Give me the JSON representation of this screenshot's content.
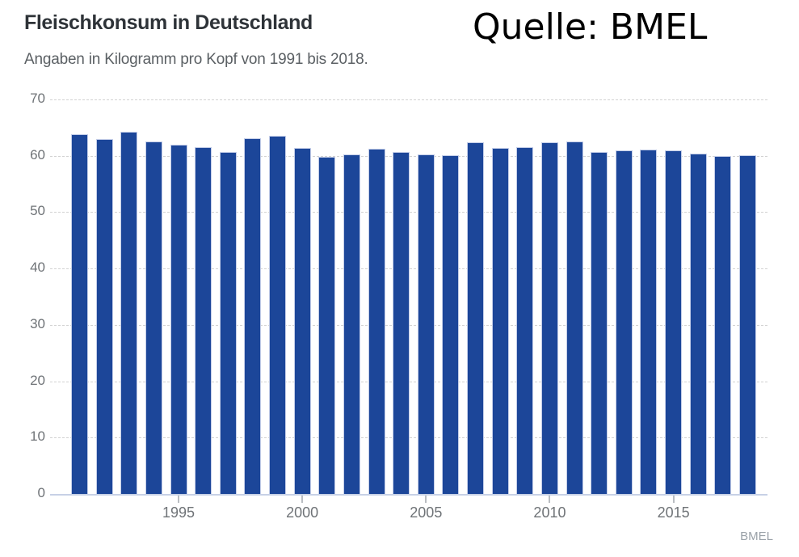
{
  "header": {
    "title": "Fleischkonsum in Deutschland",
    "subtitle": "Angaben in Kilogramm pro Kopf von 1991 bis 2018.",
    "annotation": "Quelle: BMEL"
  },
  "footer": {
    "source": "BMEL"
  },
  "colors": {
    "bar": "#1c4699",
    "bar_stroke": "#c3cde8",
    "zero_line": "#c7d1e6",
    "gridline": "#d2d2d2",
    "title_text": "#2e3338",
    "subtitle_text": "#5b6064",
    "axis_label": "#6f7377",
    "source_text": "#9aa1a8",
    "annotation_text": "#000000"
  },
  "chart_data": {
    "type": "bar",
    "title": "Fleischkonsum in Deutschland",
    "subtitle": "Angaben in Kilogramm pro Kopf von 1991 bis 2018.",
    "xlabel": "",
    "ylabel": "Kilogramm pro Kopf",
    "ylim": [
      0,
      70
    ],
    "y_ticks": [
      0,
      10,
      20,
      30,
      40,
      50,
      60,
      70
    ],
    "grid": "horizontal-dashed",
    "legend": "none",
    "source": "BMEL",
    "x": [
      1991,
      1992,
      1993,
      1994,
      1995,
      1996,
      1997,
      1998,
      1999,
      2000,
      2001,
      2002,
      2003,
      2004,
      2005,
      2006,
      2007,
      2008,
      2009,
      2010,
      2011,
      2012,
      2013,
      2014,
      2015,
      2016,
      2017,
      2018
    ],
    "values": [
      63.9,
      63.0,
      64.2,
      62.6,
      62.0,
      61.6,
      60.7,
      63.1,
      63.6,
      61.4,
      59.8,
      60.3,
      61.3,
      60.7,
      60.3,
      60.1,
      62.4,
      61.4,
      61.6,
      62.4,
      62.6,
      60.7,
      60.9,
      61.1,
      61.0,
      60.4,
      59.9,
      60.1
    ],
    "x_tick_labels": [
      1995,
      2000,
      2005,
      2010,
      2015
    ]
  }
}
